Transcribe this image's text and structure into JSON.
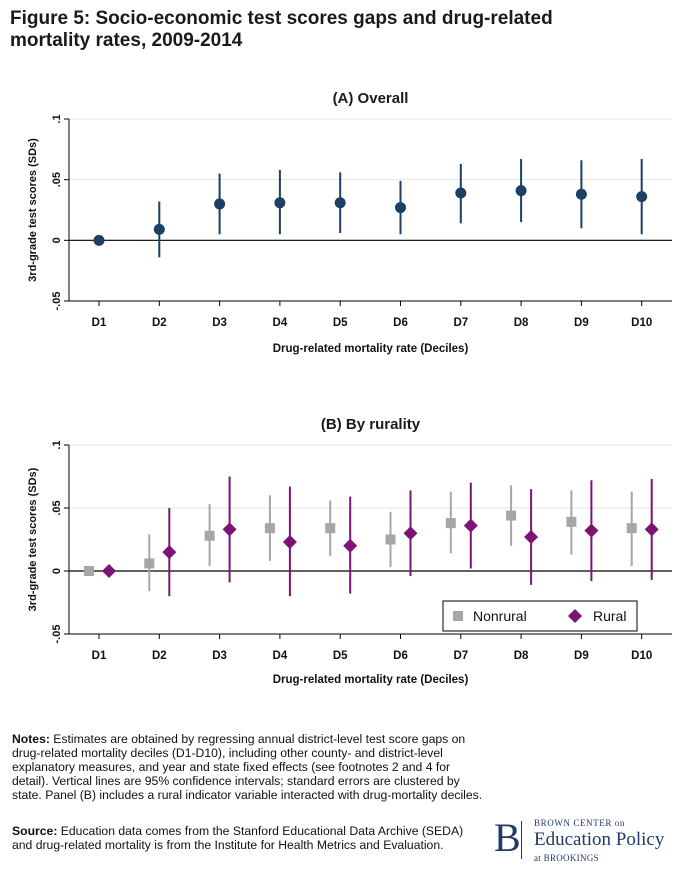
{
  "figure": {
    "title": "Figure 5: Socio-economic test scores gaps and drug-related mortality rates, 2009-2014"
  },
  "colors": {
    "overall": "#1c3f63",
    "nonrural": "#a6a6a6",
    "rural": "#7b1475",
    "grid": "#e6e6e6"
  },
  "chart_data": [
    {
      "type": "scatter",
      "title": "(A) Overall",
      "xlabel": "Drug-related mortality rate (Deciles)",
      "ylabel": "3rd-grade test scores (SDs)",
      "categories": [
        "D1",
        "D2",
        "D3",
        "D4",
        "D5",
        "D6",
        "D7",
        "D8",
        "D9",
        "D10"
      ],
      "ylim": [
        -0.05,
        0.1
      ],
      "yticks": [
        -0.05,
        0,
        0.05,
        0.1
      ],
      "ytick_labels": [
        "-.05",
        "0",
        ".05",
        ".1"
      ],
      "grid": true,
      "error_bars": "95% confidence intervals",
      "series": [
        {
          "values": [
            0,
            0.009,
            0.03,
            0.031,
            0.031,
            0.027,
            0.039,
            0.041,
            0.038,
            0.036
          ],
          "ci_low": [
            0,
            -0.014,
            0.005,
            0.005,
            0.006,
            0.005,
            0.014,
            0.015,
            0.01,
            0.005
          ],
          "ci_high": [
            0,
            0.032,
            0.055,
            0.058,
            0.056,
            0.049,
            0.063,
            0.067,
            0.066,
            0.067
          ]
        }
      ]
    },
    {
      "type": "scatter",
      "title": "(B) By rurality",
      "xlabel": "Drug-related mortality rate (Deciles)",
      "ylabel": "3rd-grade test scores (SDs)",
      "categories": [
        "D1",
        "D2",
        "D3",
        "D4",
        "D5",
        "D6",
        "D7",
        "D8",
        "D9",
        "D10"
      ],
      "ylim": [
        -0.05,
        0.1
      ],
      "yticks": [
        -0.05,
        0,
        0.05,
        0.1
      ],
      "ytick_labels": [
        "-.05",
        "0",
        ".05",
        ".1"
      ],
      "grid": true,
      "legend": "bottom-right",
      "error_bars": "95% confidence intervals",
      "series": [
        {
          "name": "Nonrural",
          "marker": "square",
          "values": [
            0,
            0.006,
            0.028,
            0.034,
            0.034,
            0.025,
            0.038,
            0.044,
            0.039,
            0.034
          ],
          "ci_low": [
            0,
            -0.016,
            0.004,
            0.008,
            0.012,
            0.003,
            0.014,
            0.02,
            0.013,
            0.004
          ],
          "ci_high": [
            0,
            0.029,
            0.053,
            0.06,
            0.056,
            0.047,
            0.063,
            0.068,
            0.064,
            0.063
          ]
        },
        {
          "name": "Rural",
          "marker": "diamond",
          "values": [
            0,
            0.015,
            0.033,
            0.023,
            0.02,
            0.03,
            0.036,
            0.027,
            0.032,
            0.033
          ],
          "ci_low": [
            0,
            -0.02,
            -0.009,
            -0.02,
            -0.018,
            -0.004,
            0.002,
            -0.011,
            -0.008,
            -0.007
          ],
          "ci_high": [
            0,
            0.05,
            0.075,
            0.067,
            0.059,
            0.064,
            0.07,
            0.065,
            0.072,
            0.073
          ]
        }
      ]
    }
  ],
  "notes": {
    "label": "Notes:",
    "text": " Estimates are obtained by regressing annual district-level test score gaps on drug-related mortality deciles (D1-D10), including other county- and district-level explanatory measures, and year and state fixed effects (see footnotes 2 and 4 for detail). Vertical lines are 95% confidence intervals; standard errors are clustered by state. Panel (B) includes a rural indicator variable interacted with drug-mortality deciles."
  },
  "source": {
    "label": "Source:",
    "text": " Education data comes from the Stanford Educational Data Archive (SEDA) and drug-related mortality is from the Institute for Health Metrics and Evaluation."
  },
  "logo": {
    "letter": "B",
    "line1": "BROWN CENTER on",
    "line2": "Education Policy",
    "line3": "at BROOKINGS"
  }
}
